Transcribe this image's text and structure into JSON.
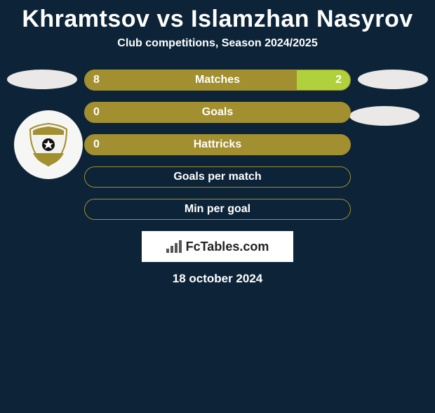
{
  "title": "Khramtsov vs Islamzhan Nasyrov",
  "subtitle": "Club competitions, Season 2024/2025",
  "date": "18 october 2024",
  "logo_text": "FcTables.com",
  "colors": {
    "background": "#0d2438",
    "bar_primary": "#a28f2f",
    "bar_secondary": "#b0d13b",
    "text": "#ffffff",
    "logo_bg": "#ffffff"
  },
  "stats": [
    {
      "label": "Matches",
      "left_value": "8",
      "right_value": "2",
      "left_pct": 80,
      "right_pct": 20,
      "type": "split"
    },
    {
      "label": "Goals",
      "left_value": "0",
      "right_value": "",
      "left_pct": 100,
      "right_pct": 0,
      "type": "solid"
    },
    {
      "label": "Hattricks",
      "left_value": "0",
      "right_value": "",
      "left_pct": 100,
      "right_pct": 0,
      "type": "solid"
    },
    {
      "label": "Goals per match",
      "left_value": "",
      "right_value": "",
      "left_pct": 0,
      "right_pct": 0,
      "type": "hollow"
    },
    {
      "label": "Min per goal",
      "left_value": "",
      "right_value": "",
      "left_pct": 0,
      "right_pct": 0,
      "type": "hollow"
    }
  ]
}
